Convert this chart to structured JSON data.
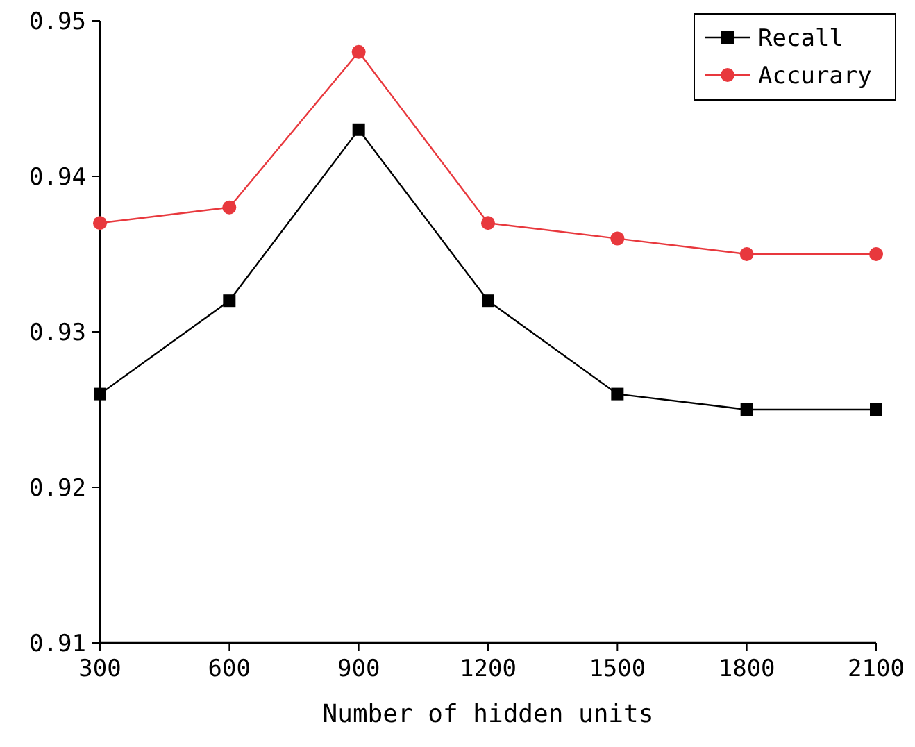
{
  "chart_data": {
    "type": "line",
    "xlabel": "Number of hidden units",
    "x": [
      300,
      600,
      900,
      1200,
      1500,
      1800,
      2100
    ],
    "series": [
      {
        "name": "Recall",
        "color": "#000000",
        "marker": "square",
        "values": [
          0.926,
          0.932,
          0.943,
          0.932,
          0.926,
          0.925,
          0.925
        ]
      },
      {
        "name": "Accurary",
        "color": "#e8383d",
        "marker": "circle",
        "values": [
          0.937,
          0.938,
          0.948,
          0.937,
          0.936,
          0.935,
          0.935
        ]
      }
    ],
    "xlim": [
      300,
      2100
    ],
    "xticks": [
      300,
      600,
      900,
      1200,
      1500,
      1800,
      2100
    ],
    "ylim": [
      0.91,
      0.95
    ],
    "yticks": [
      0.91,
      0.92,
      0.93,
      0.94,
      0.95
    ],
    "grid": false,
    "legend": "top right",
    "line_style": "solid"
  }
}
